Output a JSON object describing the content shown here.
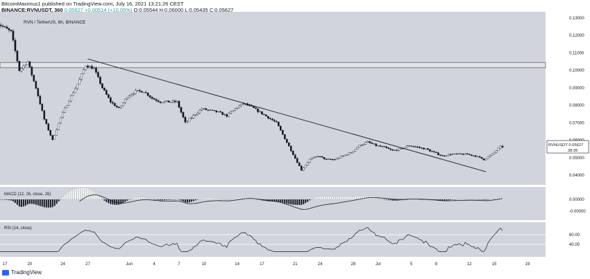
{
  "header": {
    "line1": "BitcoinMaximus1 published on TradingView.com, July 16, 2021 13:21:26 CEST",
    "symbol_line": "BINANCE:RVNUSDT, 360",
    "last": "0.05627",
    "change": "+0.00514 (+10.05%)",
    "ohlc": "O:0.05544  H:0.06000  L:0.05435  C:0.05627",
    "watermark": "RVN / TetherUS, 6h, BINANCE"
  },
  "price_tag": {
    "symbol": "RVNUSDT",
    "value": "0.05627",
    "countdown": "38:35"
  },
  "macd_label": "MACD (12, 26, close, 26)",
  "rsi_label": "RSI (14, close)",
  "brand": "TradingView",
  "colors": {
    "bg": "#d1d4dc",
    "up": "#ffffff",
    "down": "#131722",
    "line": "#131722",
    "zone": "#e1e3e9"
  },
  "chart_data": {
    "type": "candlestick",
    "price_axis_ticks": [
      "0.13000",
      "0.12000",
      "0.11000",
      "0.10000",
      "0.09000",
      "0.08000",
      "0.07000",
      "0.06000",
      "0.05000",
      "0.04000"
    ],
    "price_ylim": [
      0.0345,
      0.1335
    ],
    "x_ticks": [
      "17",
      "20",
      "24",
      "27",
      "Jun",
      "4",
      "7",
      "10",
      "14",
      "17",
      "21",
      "24",
      "28",
      "Jul",
      "5",
      "8",
      "12",
      "15",
      "19"
    ],
    "resistance_zone": [
      0.1015,
      0.1045
    ],
    "trendline": [
      {
        "date": "May 27",
        "price": 0.1065
      },
      {
        "date": "Jul 14",
        "price": 0.042
      }
    ],
    "price_keypoints": [
      {
        "date": "May 16",
        "price": 0.128
      },
      {
        "date": "May 18",
        "price": 0.122
      },
      {
        "date": "May 19",
        "price": 0.1
      },
      {
        "date": "May 20",
        "price": 0.105
      },
      {
        "date": "May 21",
        "price": 0.09
      },
      {
        "date": "May 22",
        "price": 0.072
      },
      {
        "date": "May 23",
        "price": 0.06
      },
      {
        "date": "May 24",
        "price": 0.073
      },
      {
        "date": "May 25",
        "price": 0.083
      },
      {
        "date": "May 26",
        "price": 0.092
      },
      {
        "date": "May 27",
        "price": 0.103
      },
      {
        "date": "May 28",
        "price": 0.101
      },
      {
        "date": "May 29",
        "price": 0.09
      },
      {
        "date": "May 30",
        "price": 0.082
      },
      {
        "date": "May 31",
        "price": 0.078
      },
      {
        "date": "Jun 1",
        "price": 0.085
      },
      {
        "date": "Jun 2",
        "price": 0.088
      },
      {
        "date": "Jun 3",
        "price": 0.088
      },
      {
        "date": "Jun 4",
        "price": 0.084
      },
      {
        "date": "Jun 5",
        "price": 0.082
      },
      {
        "date": "Jun 7",
        "price": 0.082
      },
      {
        "date": "Jun 8",
        "price": 0.07
      },
      {
        "date": "Jun 9",
        "price": 0.074
      },
      {
        "date": "Jun 10",
        "price": 0.078
      },
      {
        "date": "Jun 12",
        "price": 0.076
      },
      {
        "date": "Jun 13",
        "price": 0.074
      },
      {
        "date": "Jun 14",
        "price": 0.078
      },
      {
        "date": "Jun 15",
        "price": 0.081
      },
      {
        "date": "Jun 16",
        "price": 0.079
      },
      {
        "date": "Jun 17",
        "price": 0.076
      },
      {
        "date": "Jun 18",
        "price": 0.073
      },
      {
        "date": "Jun 19",
        "price": 0.07
      },
      {
        "date": "Jun 20",
        "price": 0.061
      },
      {
        "date": "Jun 21",
        "price": 0.052
      },
      {
        "date": "Jun 22",
        "price": 0.043
      },
      {
        "date": "Jun 23",
        "price": 0.049
      },
      {
        "date": "Jun 24",
        "price": 0.051
      },
      {
        "date": "Jun 25",
        "price": 0.049
      },
      {
        "date": "Jun 26",
        "price": 0.049
      },
      {
        "date": "Jun 28",
        "price": 0.053
      },
      {
        "date": "Jun 29",
        "price": 0.057
      },
      {
        "date": "Jun 30",
        "price": 0.059
      },
      {
        "date": "Jul 1",
        "price": 0.057
      },
      {
        "date": "Jul 2",
        "price": 0.056
      },
      {
        "date": "Jul 3",
        "price": 0.054
      },
      {
        "date": "Jul 4",
        "price": 0.055
      },
      {
        "date": "Jul 5",
        "price": 0.057
      },
      {
        "date": "Jul 6",
        "price": 0.056
      },
      {
        "date": "Jul 7",
        "price": 0.055
      },
      {
        "date": "Jul 8",
        "price": 0.053
      },
      {
        "date": "Jul 9",
        "price": 0.051
      },
      {
        "date": "Jul 10",
        "price": 0.052
      },
      {
        "date": "Jul 11",
        "price": 0.052
      },
      {
        "date": "Jul 12",
        "price": 0.052
      },
      {
        "date": "Jul 13",
        "price": 0.051
      },
      {
        "date": "Jul 14",
        "price": 0.049
      },
      {
        "date": "Jul 15",
        "price": 0.052
      },
      {
        "date": "Jul 16",
        "price": 0.05627
      }
    ],
    "macd_axis_ticks": [
      "0.00000",
      "-0.00000"
    ],
    "rsi_axis_ticks": [
      "60.00",
      "40.00"
    ],
    "rsi_level_lines": [
      60,
      40
    ]
  }
}
